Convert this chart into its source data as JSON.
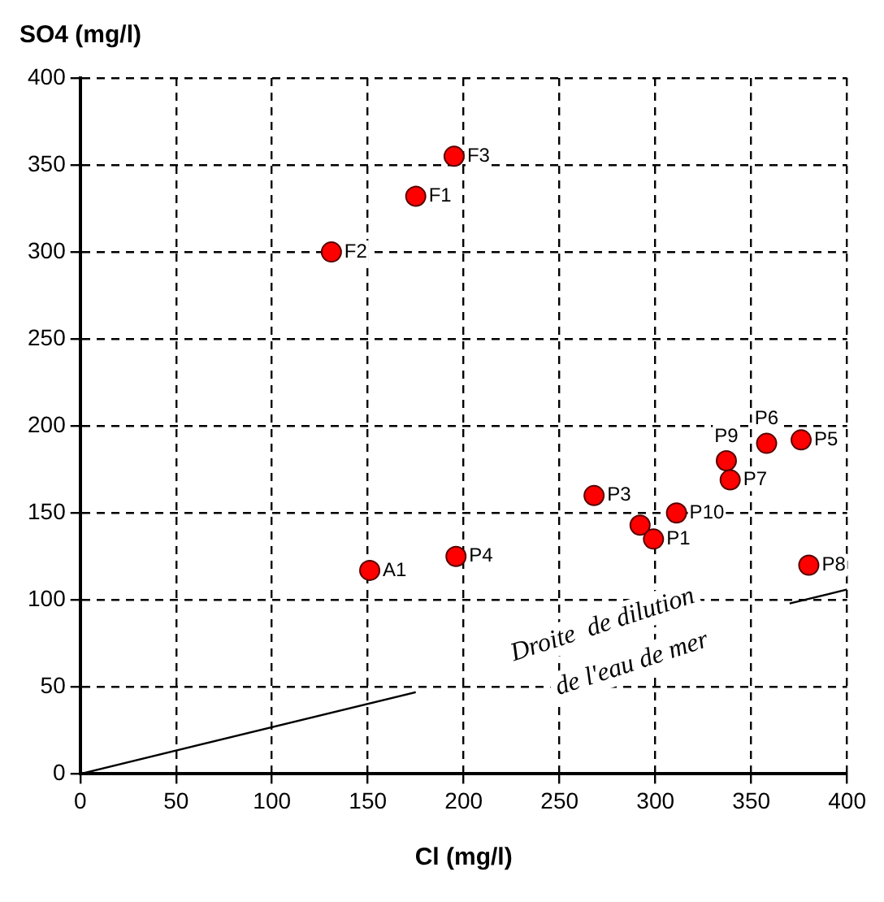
{
  "chart_data": {
    "type": "scatter",
    "xlabel": "Cl (mg/l)",
    "ylabel": "SO4 (mg/l)",
    "xlim": [
      0,
      400
    ],
    "ylim": [
      0,
      400
    ],
    "xticks": [
      0,
      50,
      100,
      150,
      200,
      250,
      300,
      350,
      400
    ],
    "yticks": [
      0,
      50,
      100,
      150,
      200,
      250,
      300,
      350,
      400
    ],
    "grid": true,
    "legend": false,
    "marker": "circle",
    "series": [
      {
        "color": "#ff0000",
        "x": [
          195,
          175,
          131,
          151,
          196,
          268,
          292,
          299,
          311,
          337,
          339,
          358,
          376,
          380
        ],
        "values": [
          355,
          332,
          300,
          117,
          125,
          160,
          143,
          135,
          150,
          180,
          169,
          190,
          192,
          120
        ]
      },
      {
        "type": "line",
        "color": "#000000",
        "line_style": "solid",
        "marker": "none",
        "x": [
          0,
          175,
          270,
          370,
          400
        ],
        "values": [
          0,
          47,
          null,
          98,
          106
        ]
      }
    ],
    "annotations": [
      {
        "text": "F3",
        "x": 195,
        "y": 355
      },
      {
        "text": "F1",
        "x": 175,
        "y": 332
      },
      {
        "text": "F2",
        "x": 131,
        "y": 300
      },
      {
        "text": "A1",
        "x": 151,
        "y": 117
      },
      {
        "text": "P4",
        "x": 196,
        "y": 125
      },
      {
        "text": "P3",
        "x": 268,
        "y": 160
      },
      {
        "text": "P1",
        "x": 299,
        "y": 135
      },
      {
        "text": "P10",
        "x": 311,
        "y": 150
      },
      {
        "text": "P9",
        "x": 337,
        "y": 180
      },
      {
        "text": "P7",
        "x": 339,
        "y": 169
      },
      {
        "text": "P6",
        "x": 358,
        "y": 190
      },
      {
        "text": "P5",
        "x": 376,
        "y": 192
      },
      {
        "text": "P8",
        "x": 380,
        "y": 120
      },
      "Droite  de dilution",
      "de l'eau de mer"
    ]
  }
}
